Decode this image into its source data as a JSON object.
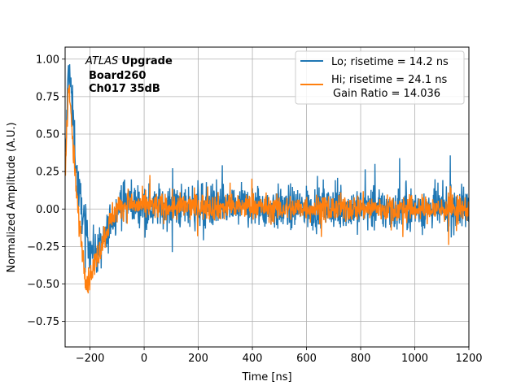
{
  "chart_data": {
    "type": "line",
    "title": "",
    "xlabel": "Time [ns]",
    "ylabel": "Normalized Amplitude (A.U.)",
    "xlim": [
      -292,
      1200
    ],
    "ylim": [
      -0.92,
      1.08
    ],
    "grid": true,
    "legend_position": "top-right",
    "x_ticks": [
      -200,
      0,
      200,
      400,
      600,
      800,
      1000,
      1200
    ],
    "x_tick_labels": [
      "−200",
      "0",
      "200",
      "400",
      "600",
      "800",
      "1000",
      "1200"
    ],
    "y_ticks": [
      -0.75,
      -0.5,
      -0.25,
      0.0,
      0.25,
      0.5,
      0.75,
      1.0
    ],
    "y_tick_labels": [
      "−0.75",
      "−0.50",
      "−0.25",
      "0.00",
      "0.25",
      "0.50",
      "0.75",
      "1.00"
    ],
    "series": [
      {
        "name": "Lo; risetime = 14.2 ns",
        "color": "#1f77b4",
        "x": [
          -290,
          -280,
          -270,
          -260,
          -250,
          -240,
          -230,
          -220,
          -210,
          -200,
          -180,
          -160,
          -140,
          -120,
          -100,
          -80,
          -60,
          -40,
          -20,
          0,
          50,
          100,
          200,
          300,
          400,
          500,
          600,
          700,
          800,
          900,
          1000,
          1100,
          1200
        ],
        "y": [
          0.35,
          0.95,
          0.8,
          0.55,
          0.25,
          0.1,
          0.0,
          -0.1,
          -0.2,
          -0.25,
          -0.3,
          -0.25,
          -0.2,
          -0.05,
          0.0,
          0.05,
          0.05,
          0.04,
          0.03,
          0.02,
          0.02,
          0.01,
          0.02,
          0.01,
          0.02,
          0.0,
          0.01,
          0.0,
          0.01,
          0.0,
          0.0,
          0.0,
          0.0
        ]
      },
      {
        "name": "Hi; risetime = 24.1 ns",
        "color": "#ff7f0e",
        "x": [
          -290,
          -280,
          -270,
          -260,
          -250,
          -240,
          -230,
          -220,
          -210,
          -200,
          -180,
          -160,
          -140,
          -120,
          -100,
          -80,
          -60,
          -40,
          -20,
          0,
          50,
          100,
          200,
          300,
          400,
          500,
          600,
          700,
          800,
          900,
          1000,
          1100,
          1200
        ],
        "y": [
          0.3,
          0.85,
          0.6,
          0.35,
          0.1,
          -0.1,
          -0.25,
          -0.4,
          -0.5,
          -0.45,
          -0.35,
          -0.25,
          -0.15,
          -0.05,
          0.0,
          0.02,
          0.03,
          0.03,
          0.02,
          0.02,
          0.02,
          0.01,
          0.02,
          0.01,
          0.02,
          0.0,
          0.01,
          0.0,
          0.01,
          0.0,
          0.0,
          0.0,
          0.0
        ]
      }
    ],
    "noise": {
      "Lo": 0.14,
      "Hi": 0.085
    },
    "legend_extra": "Gain Ratio = 14.036",
    "annotation": {
      "italic": "ATLAS",
      "bold": "Upgrade",
      "line2": "Board260",
      "line3": "Ch017 35dB"
    }
  }
}
